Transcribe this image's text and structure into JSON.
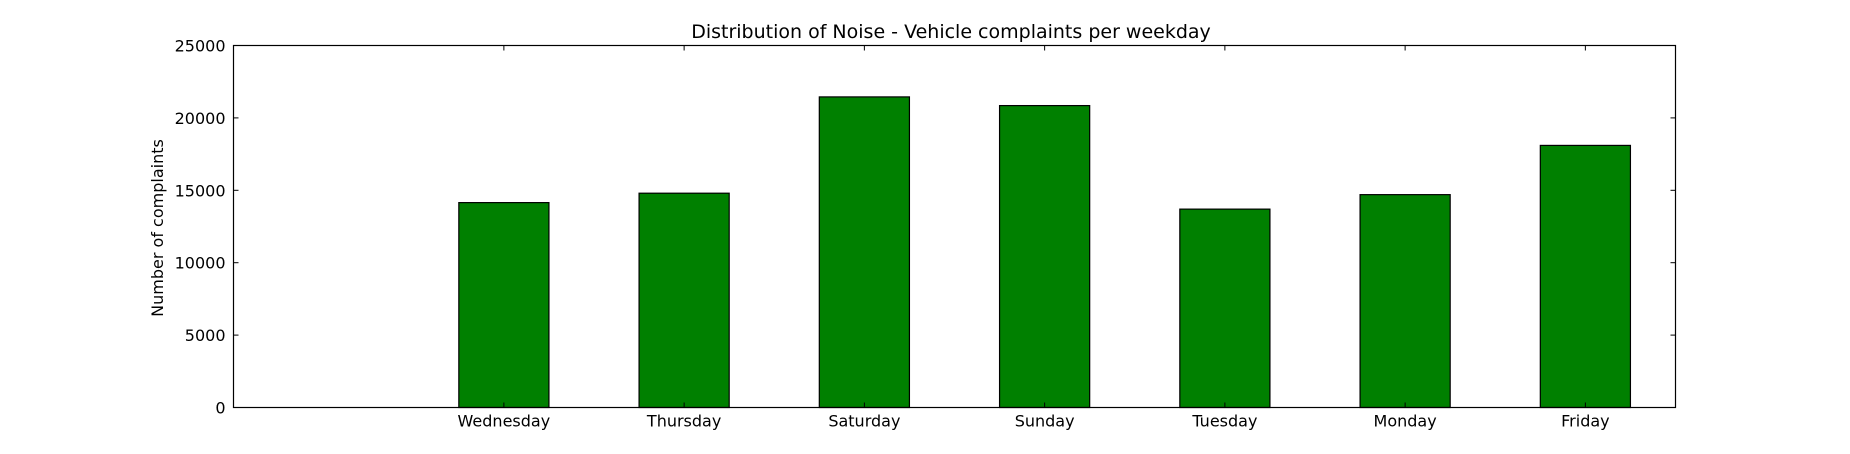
{
  "chart_data": {
    "type": "bar",
    "title": "Distribution of  Noise - Vehicle complaints per weekday",
    "xlabel": "",
    "ylabel": "Number of complaints",
    "categories": [
      "Wednesday",
      "Thursday",
      "Saturday",
      "Sunday",
      "Tuesday",
      "Monday",
      "Friday"
    ],
    "values": [
      14150,
      14800,
      21450,
      20850,
      13700,
      14700,
      18100
    ],
    "ylim": [
      0,
      25000
    ],
    "yticks": [
      0,
      5000,
      10000,
      15000,
      20000,
      25000
    ],
    "ytick_labels": [
      "0",
      "5000",
      "10000",
      "15000",
      "20000",
      "25000"
    ],
    "grid": false,
    "legend": "none",
    "colors": {
      "bar": "#008000",
      "bar_edge": "#000000",
      "axes": "#000000",
      "background": "#ffffff"
    }
  }
}
